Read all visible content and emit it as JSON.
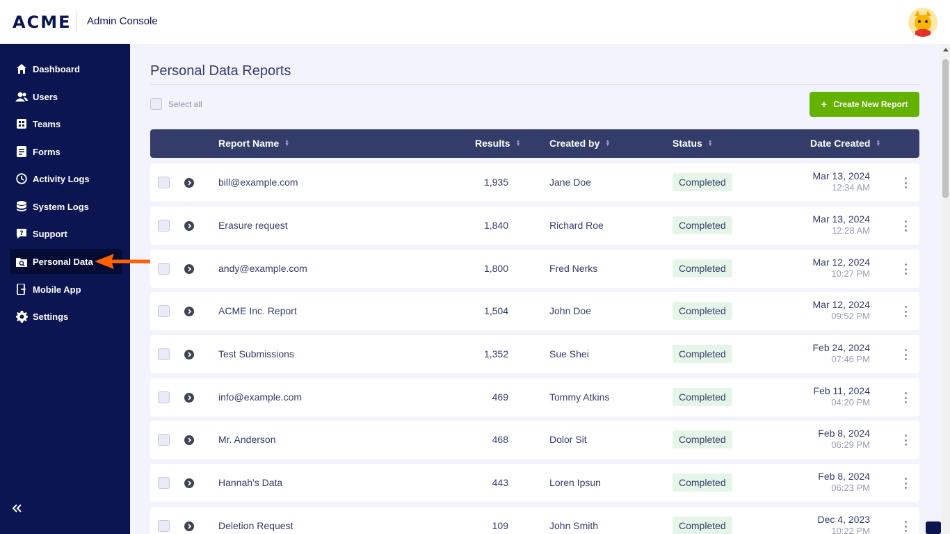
{
  "header": {
    "logo": "ACME",
    "app_name": "Admin Console"
  },
  "sidebar": {
    "items": [
      {
        "label": "Dashboard",
        "icon": "home-icon"
      },
      {
        "label": "Users",
        "icon": "users-icon"
      },
      {
        "label": "Teams",
        "icon": "teams-icon"
      },
      {
        "label": "Forms",
        "icon": "forms-icon"
      },
      {
        "label": "Activity Logs",
        "icon": "clock-icon"
      },
      {
        "label": "System Logs",
        "icon": "database-icon"
      },
      {
        "label": "Support",
        "icon": "help-icon"
      },
      {
        "label": "Personal Data",
        "icon": "camera-folder-icon"
      },
      {
        "label": "Mobile App",
        "icon": "mobile-icon"
      },
      {
        "label": "Settings",
        "icon": "gear-icon"
      }
    ],
    "active": "Personal Data"
  },
  "page": {
    "title": "Personal Data Reports",
    "select_all_label": "Select all",
    "create_button_label": "Create New Report"
  },
  "table": {
    "columns": [
      "Report Name",
      "Results",
      "Created by",
      "Status",
      "Date Created"
    ],
    "rows": [
      {
        "name": "bill@example.com",
        "results": "1,935",
        "created_by": "Jane Doe",
        "status": "Completed",
        "date": "Mar 13, 2024",
        "time": "12:34 AM"
      },
      {
        "name": "Erasure request",
        "results": "1,840",
        "created_by": "Richard Roe",
        "status": "Completed",
        "date": "Mar 13, 2024",
        "time": "12:28 AM"
      },
      {
        "name": "andy@example.com",
        "results": "1,800",
        "created_by": "Fred Nerks",
        "status": "Completed",
        "date": "Mar 12, 2024",
        "time": "10:27 PM"
      },
      {
        "name": "ACME Inc. Report",
        "results": "1,504",
        "created_by": "John Doe",
        "status": "Completed",
        "date": "Mar 12, 2024",
        "time": "09:52 PM"
      },
      {
        "name": "Test Submissions",
        "results": "1,352",
        "created_by": "Sue Shei",
        "status": "Completed",
        "date": "Feb 24, 2024",
        "time": "07:46 PM"
      },
      {
        "name": "info@example.com",
        "results": "469",
        "created_by": "Tommy Atkins",
        "status": "Completed",
        "date": "Feb 11, 2024",
        "time": "04:20 PM"
      },
      {
        "name": "Mr. Anderson",
        "results": "468",
        "created_by": "Dolor Sit",
        "status": "Completed",
        "date": "Feb 8, 2024",
        "time": "06:29 PM"
      },
      {
        "name": "Hannah's Data",
        "results": "443",
        "created_by": "Loren Ipsun",
        "status": "Completed",
        "date": "Feb 8, 2024",
        "time": "06:23 PM"
      },
      {
        "name": "Deletion Request",
        "results": "109",
        "created_by": "John Smith",
        "status": "Completed",
        "date": "Dec 4, 2023",
        "time": "10:22 PM"
      }
    ]
  },
  "colors": {
    "sidebar_bg": "#0a1551",
    "accent_green": "#64b200",
    "table_header": "#343c6a",
    "status_bg": "#e5f6e8",
    "annotation_arrow": "#ff6100"
  }
}
